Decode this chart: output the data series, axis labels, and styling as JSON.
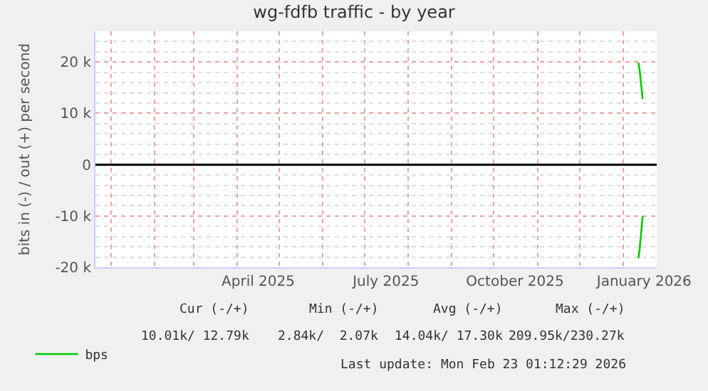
{
  "chart_data": {
    "type": "line",
    "title": "wg-fdfb traffic - by year",
    "ylabel": "bits in (-) / out (+) per second",
    "xlim": [
      "2024-12-21",
      "2026-01-25"
    ],
    "xticks": [
      {
        "value": "2025-04-16",
        "label": "April 2025"
      },
      {
        "value": "2025-07-16",
        "label": "July 2025"
      },
      {
        "value": "2025-10-16",
        "label": "October 2025"
      },
      {
        "value": "2026-01-16",
        "label": "January 2026"
      }
    ],
    "ylim": [
      -20000,
      26000
    ],
    "yticks": [
      {
        "value": -20000,
        "label": "-20 k"
      },
      {
        "value": -10000,
        "label": "-10 k"
      },
      0,
      {
        "value": 10000,
        "label": "10 k"
      },
      {
        "value": 20000,
        "label": "20 k"
      }
    ],
    "series": [
      {
        "name": "bps",
        "color": "#00cc00",
        "x": [
          "2026-01-12",
          "2026-01-13",
          "2026-01-15"
        ],
        "values": [
          19900,
          18000,
          12800
        ]
      },
      {
        "color": "#00cc00",
        "x": [
          "2026-01-12",
          "2026-01-13",
          "2026-01-15"
        ],
        "values": [
          -18200,
          -16000,
          -10000
        ]
      }
    ],
    "ref_lines": [
      {
        "axis": "y",
        "value": 0,
        "color": "#000000"
      }
    ],
    "grid": true,
    "legend": "bottom left",
    "marker": "none",
    "line_style": "solid",
    "annotations": [
      "Cur (-/+)",
      "Min (-/+)",
      "Avg (-/+)",
      "Max (-/+)",
      "10.01k/ 12.79k",
      "2.84k/  2.07k",
      "14.04k/ 17.30k",
      "209.95k/230.27k",
      "Last update: Mon Feb 23 01:12:29 2026"
    ]
  }
}
